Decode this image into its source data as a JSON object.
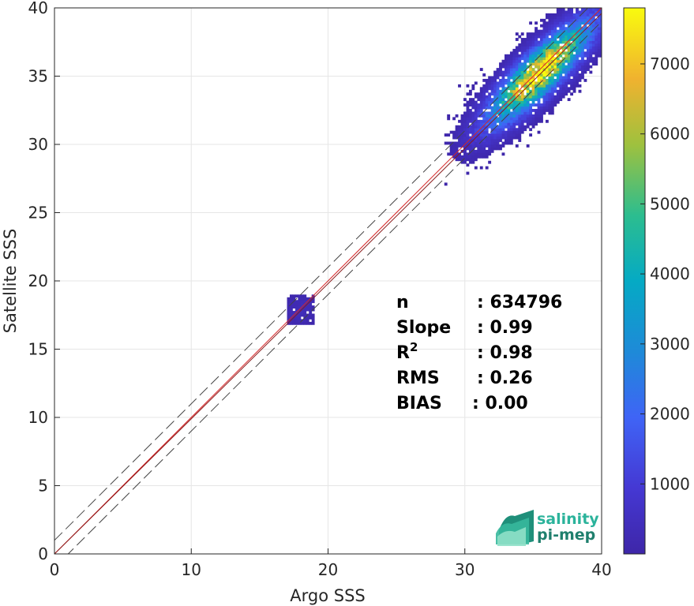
{
  "chart_data": {
    "type": "heatmap",
    "title": "",
    "xlabel": "Argo SSS",
    "ylabel": "Satellite SSS",
    "xlim": [
      0,
      40
    ],
    "ylim": [
      0,
      40
    ],
    "xticks": [
      "0",
      "10",
      "20",
      "30",
      "40"
    ],
    "yticks": [
      "0",
      "5",
      "10",
      "15",
      "20",
      "25",
      "30",
      "35",
      "40"
    ],
    "grid": true,
    "colorbar": {
      "range": [
        0,
        7800
      ],
      "ticks": [
        "1000",
        "2000",
        "3000",
        "4000",
        "5000",
        "6000",
        "7000"
      ],
      "colormap": "parula"
    },
    "density_clusters": [
      {
        "name": "main",
        "x_range": [
          28.5,
          40
        ],
        "y_range": [
          27,
          40
        ],
        "center": [
          35.5,
          35.3
        ],
        "peak_count": 7800
      },
      {
        "name": "secondary",
        "x_range": [
          17,
          18.8
        ],
        "y_range": [
          16.8,
          18.8
        ],
        "center": [
          18,
          17.9
        ],
        "peak_count": 400
      }
    ],
    "reference_lines": [
      {
        "name": "identity",
        "slope": 1,
        "intercept": 0,
        "color": "#d62728"
      },
      {
        "name": "fit",
        "slope": 0.99,
        "intercept": 0,
        "color": "#8b1a1a"
      },
      {
        "name": "upper-bound",
        "slope": 1,
        "intercept": 1,
        "color": "#444444",
        "dash": true
      },
      {
        "name": "lower-bound",
        "slope": 1,
        "intercept": -1,
        "color": "#444444",
        "dash": true
      }
    ],
    "stats": [
      {
        "label": "n",
        "value": ": 634796"
      },
      {
        "label": "Slope",
        "value": ": 0.99"
      },
      {
        "label": "R",
        "sup": "2",
        "value": ": 0.98"
      },
      {
        "label": "RMS",
        "value": ": 0.26"
      },
      {
        "label": "BIAS",
        "value": ": 0.00"
      }
    ]
  },
  "logo": {
    "line1": "salinity",
    "line2": "pi-mep",
    "color": "#2bb39b"
  }
}
